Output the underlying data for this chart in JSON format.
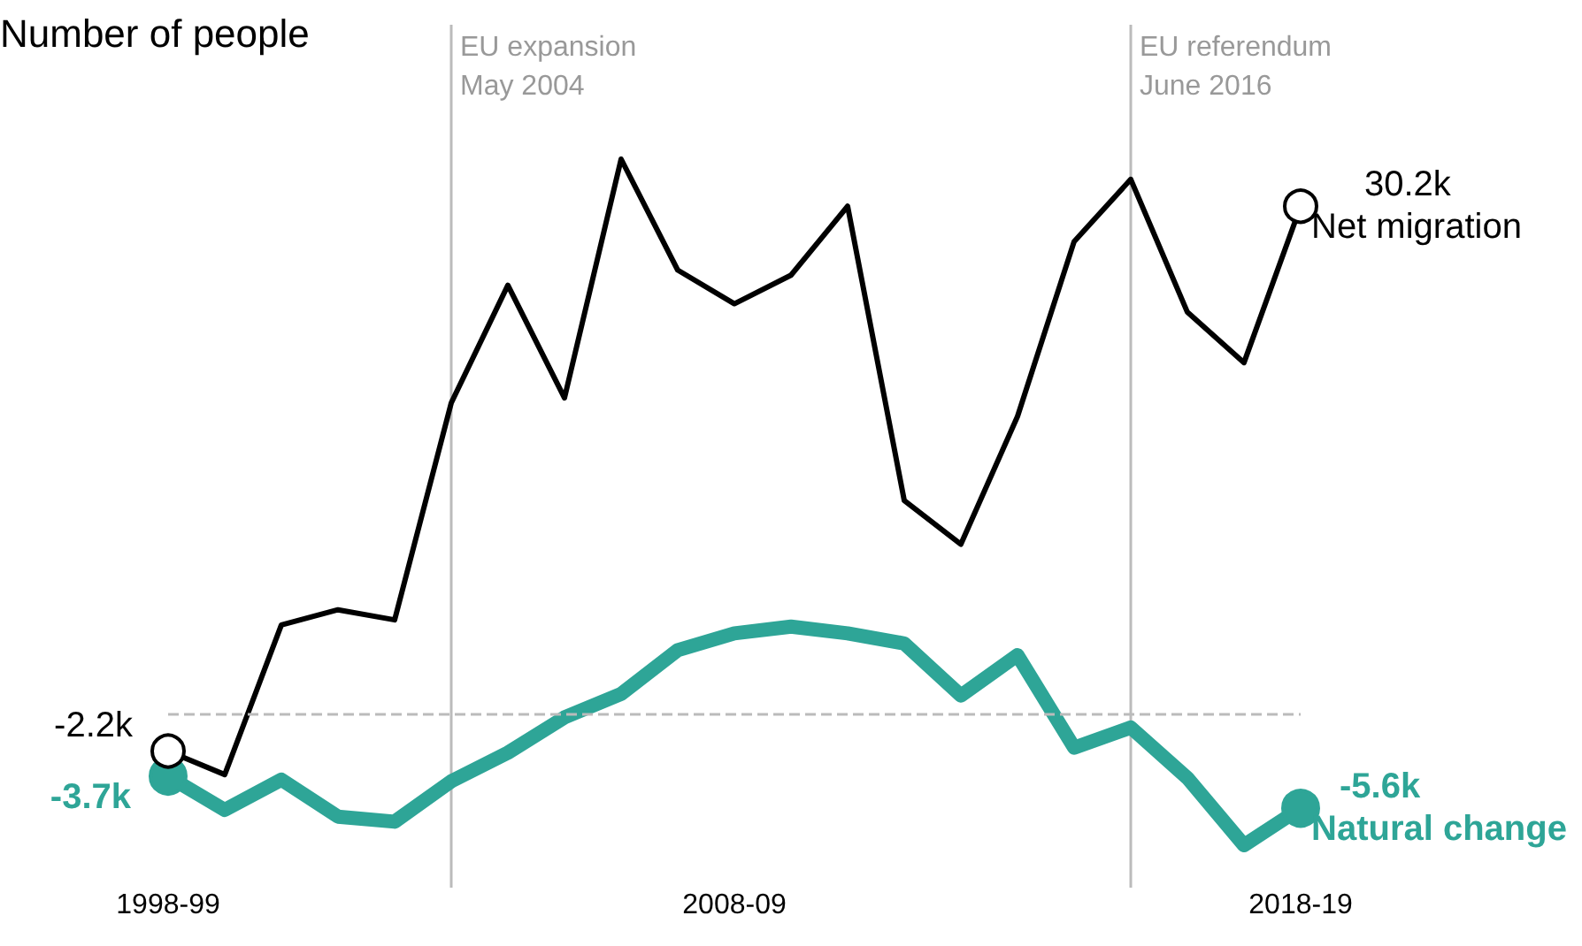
{
  "chart_data": {
    "type": "line",
    "ylabel": "Number of people",
    "categories": [
      "1998-99",
      null,
      null,
      null,
      null,
      null,
      null,
      null,
      null,
      null,
      "2008-09",
      null,
      null,
      null,
      null,
      null,
      null,
      null,
      null,
      null,
      "2018-19"
    ],
    "tick_labels": "x",
    "annotations": [
      "EU expansion\nMay 2004",
      "EU referendum\nJune 2016"
    ],
    "series": [
      {
        "name": "Net migration",
        "color": "#000000",
        "values": [
          -2.2,
          -3.6,
          5.3,
          6.2,
          5.6,
          18.5,
          25.5,
          18.8,
          33.0,
          26.4,
          24.4,
          26.1,
          30.2,
          12.7,
          10.1,
          17.7,
          28.1,
          31.8,
          23.9,
          20.9,
          30.2
        ],
        "value_labels": [
          "-2.2k",
          null,
          null,
          null,
          null,
          null,
          null,
          null,
          null,
          null,
          null,
          null,
          null,
          null,
          null,
          null,
          null,
          null,
          null,
          null,
          "30.2k"
        ]
      },
      {
        "name": "Natural change",
        "color": "#2ea597",
        "values": [
          -3.7,
          -5.7,
          -3.9,
          -6.1,
          -6.4,
          -4.0,
          -2.3,
          -0.2,
          1.2,
          3.8,
          4.8,
          5.2,
          4.8,
          4.2,
          1.1,
          3.5,
          -2.0,
          -0.8,
          -3.8,
          -7.8,
          -5.6
        ],
        "value_labels": [
          "-3.7k",
          null,
          null,
          null,
          null,
          null,
          null,
          null,
          null,
          null,
          null,
          null,
          null,
          null,
          null,
          null,
          null,
          null,
          null,
          null,
          "-5.6k"
        ]
      }
    ],
    "ref_lines": [
      {
        "axis": "y",
        "value": 0,
        "color": "#bbbbbb",
        "line_style": "dashed"
      }
    ]
  }
}
